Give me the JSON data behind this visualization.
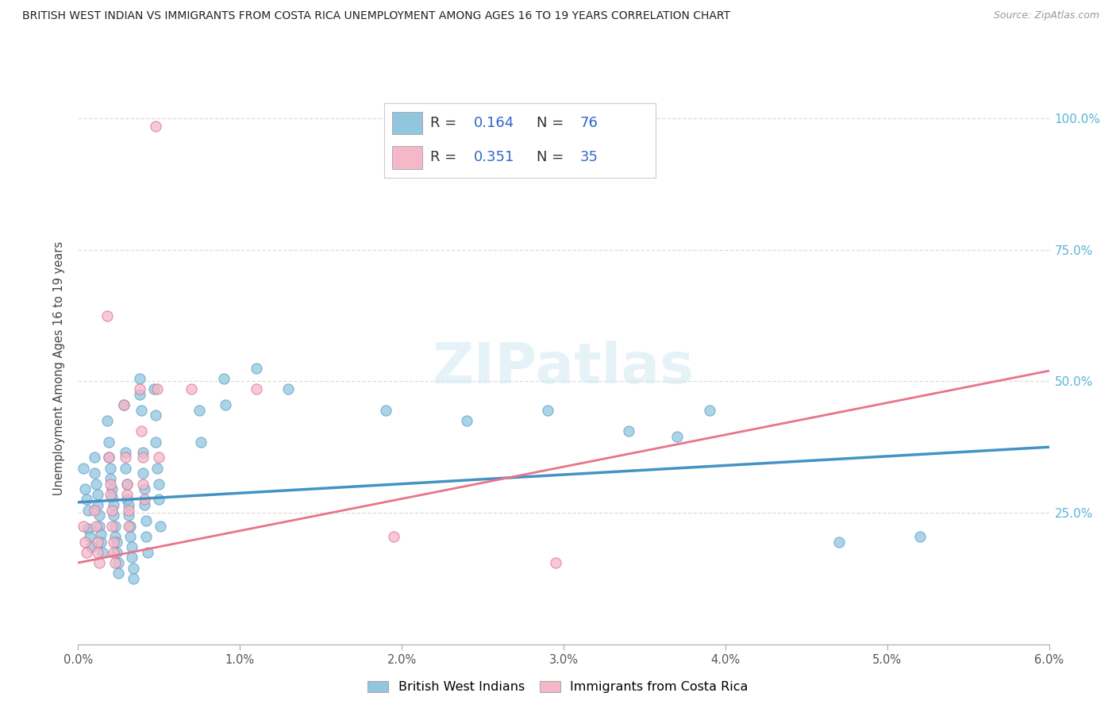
{
  "title": "BRITISH WEST INDIAN VS IMMIGRANTS FROM COSTA RICA UNEMPLOYMENT AMONG AGES 16 TO 19 YEARS CORRELATION CHART",
  "source": "Source: ZipAtlas.com",
  "ylabel": "Unemployment Among Ages 16 to 19 years",
  "ytick_labels": [
    "",
    "25.0%",
    "50.0%",
    "75.0%",
    "100.0%"
  ],
  "ytick_vals": [
    0.0,
    0.25,
    0.5,
    0.75,
    1.0
  ],
  "xtick_positions": [
    0.0,
    0.01,
    0.02,
    0.03,
    0.04,
    0.05,
    0.06
  ],
  "xtick_labels": [
    "0.0%",
    "1.0%",
    "2.0%",
    "3.0%",
    "4.0%",
    "5.0%",
    "6.0%"
  ],
  "xlim": [
    0.0,
    0.06
  ],
  "ylim": [
    0.0,
    1.05
  ],
  "R_blue": 0.164,
  "N_blue": 76,
  "R_pink": 0.351,
  "N_pink": 35,
  "blue_color": "#92c5de",
  "pink_color": "#f4b8c8",
  "blue_line_color": "#4393c3",
  "pink_line_color": "#e8748a",
  "blue_trend_x": [
    0.0,
    0.06
  ],
  "blue_trend_y": [
    0.27,
    0.375
  ],
  "pink_trend_x": [
    0.0,
    0.06
  ],
  "pink_trend_y": [
    0.155,
    0.52
  ],
  "blue_scatter": [
    [
      0.0003,
      0.335
    ],
    [
      0.0004,
      0.295
    ],
    [
      0.0005,
      0.275
    ],
    [
      0.0006,
      0.255
    ],
    [
      0.0006,
      0.22
    ],
    [
      0.0007,
      0.205
    ],
    [
      0.0008,
      0.185
    ],
    [
      0.001,
      0.355
    ],
    [
      0.001,
      0.325
    ],
    [
      0.0011,
      0.305
    ],
    [
      0.0012,
      0.285
    ],
    [
      0.0012,
      0.265
    ],
    [
      0.0013,
      0.245
    ],
    [
      0.0013,
      0.225
    ],
    [
      0.0014,
      0.21
    ],
    [
      0.0014,
      0.195
    ],
    [
      0.0015,
      0.175
    ],
    [
      0.0018,
      0.425
    ],
    [
      0.0019,
      0.385
    ],
    [
      0.0019,
      0.355
    ],
    [
      0.002,
      0.335
    ],
    [
      0.002,
      0.315
    ],
    [
      0.0021,
      0.295
    ],
    [
      0.0021,
      0.28
    ],
    [
      0.0022,
      0.265
    ],
    [
      0.0022,
      0.245
    ],
    [
      0.0023,
      0.225
    ],
    [
      0.0023,
      0.205
    ],
    [
      0.0024,
      0.195
    ],
    [
      0.0024,
      0.175
    ],
    [
      0.0025,
      0.155
    ],
    [
      0.0025,
      0.135
    ],
    [
      0.0028,
      0.455
    ],
    [
      0.0029,
      0.365
    ],
    [
      0.0029,
      0.335
    ],
    [
      0.003,
      0.305
    ],
    [
      0.003,
      0.275
    ],
    [
      0.0031,
      0.265
    ],
    [
      0.0031,
      0.245
    ],
    [
      0.0032,
      0.225
    ],
    [
      0.0032,
      0.205
    ],
    [
      0.0033,
      0.185
    ],
    [
      0.0033,
      0.165
    ],
    [
      0.0034,
      0.145
    ],
    [
      0.0034,
      0.125
    ],
    [
      0.0038,
      0.505
    ],
    [
      0.0038,
      0.475
    ],
    [
      0.0039,
      0.445
    ],
    [
      0.004,
      0.365
    ],
    [
      0.004,
      0.325
    ],
    [
      0.0041,
      0.295
    ],
    [
      0.0041,
      0.265
    ],
    [
      0.0042,
      0.235
    ],
    [
      0.0042,
      0.205
    ],
    [
      0.0043,
      0.175
    ],
    [
      0.0047,
      0.485
    ],
    [
      0.0048,
      0.435
    ],
    [
      0.0048,
      0.385
    ],
    [
      0.0049,
      0.335
    ],
    [
      0.005,
      0.305
    ],
    [
      0.005,
      0.275
    ],
    [
      0.0051,
      0.225
    ],
    [
      0.0075,
      0.445
    ],
    [
      0.0076,
      0.385
    ],
    [
      0.009,
      0.505
    ],
    [
      0.0091,
      0.455
    ],
    [
      0.011,
      0.525
    ],
    [
      0.013,
      0.485
    ],
    [
      0.019,
      0.445
    ],
    [
      0.024,
      0.425
    ],
    [
      0.029,
      0.445
    ],
    [
      0.034,
      0.405
    ],
    [
      0.037,
      0.395
    ],
    [
      0.039,
      0.445
    ],
    [
      0.047,
      0.195
    ],
    [
      0.052,
      0.205
    ]
  ],
  "pink_scatter": [
    [
      0.0003,
      0.225
    ],
    [
      0.0004,
      0.195
    ],
    [
      0.0005,
      0.175
    ],
    [
      0.001,
      0.255
    ],
    [
      0.0011,
      0.225
    ],
    [
      0.0012,
      0.195
    ],
    [
      0.0012,
      0.175
    ],
    [
      0.0013,
      0.155
    ],
    [
      0.0018,
      0.625
    ],
    [
      0.0019,
      0.355
    ],
    [
      0.002,
      0.305
    ],
    [
      0.002,
      0.285
    ],
    [
      0.0021,
      0.255
    ],
    [
      0.0021,
      0.225
    ],
    [
      0.0022,
      0.195
    ],
    [
      0.0022,
      0.175
    ],
    [
      0.0023,
      0.155
    ],
    [
      0.0028,
      0.455
    ],
    [
      0.0029,
      0.355
    ],
    [
      0.003,
      0.305
    ],
    [
      0.003,
      0.285
    ],
    [
      0.0031,
      0.255
    ],
    [
      0.0031,
      0.225
    ],
    [
      0.0038,
      0.485
    ],
    [
      0.0039,
      0.405
    ],
    [
      0.004,
      0.355
    ],
    [
      0.004,
      0.305
    ],
    [
      0.0041,
      0.275
    ],
    [
      0.0048,
      0.985
    ],
    [
      0.0049,
      0.485
    ],
    [
      0.005,
      0.355
    ],
    [
      0.007,
      0.485
    ],
    [
      0.011,
      0.485
    ],
    [
      0.0195,
      0.205
    ],
    [
      0.0295,
      0.155
    ]
  ],
  "watermark_text": "ZIPatlas",
  "grid_color": "#dddddd",
  "background_color": "#ffffff",
  "legend_label_blue": "British West Indians",
  "legend_label_pink": "Immigrants from Costa Rica"
}
